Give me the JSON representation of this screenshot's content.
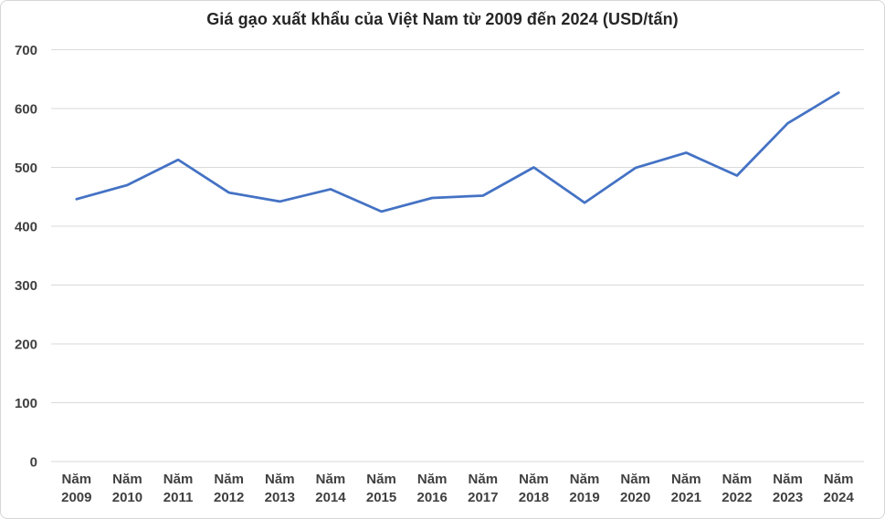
{
  "window": {
    "background": "#ffffff",
    "border_color": "#d6d6d6"
  },
  "chart_data": {
    "type": "line",
    "title": "Giá gạo xuất khẩu của Việt Nam từ 2009 đến 2024 (USD/tấn)",
    "categories": [
      "Năm 2009",
      "Năm 2010",
      "Năm 2011",
      "Năm 2012",
      "Năm 2013",
      "Năm 2014",
      "Năm 2015",
      "Năm 2016",
      "Năm 2017",
      "Năm 2018",
      "Năm 2019",
      "Năm 2020",
      "Năm 2021",
      "Năm 2022",
      "Năm 2023",
      "Năm 2024"
    ],
    "series": [
      {
        "name": "Giá gạo xuất khẩu (USD/tấn)",
        "values": [
          446,
          470,
          513,
          457,
          442,
          463,
          425,
          448,
          452,
          500,
          440,
          499,
          525,
          486,
          575,
          627
        ]
      }
    ],
    "xlabel": "",
    "ylabel": "",
    "ylim": [
      0,
      700
    ],
    "yticks": [
      0,
      100,
      200,
      300,
      400,
      500,
      600,
      700
    ],
    "grid": true,
    "legend_position": "none",
    "line_color": "#4472c4",
    "gridline_color": "#d9d9d9",
    "tick_label_color": "#404040",
    "title_color": "#262626"
  }
}
